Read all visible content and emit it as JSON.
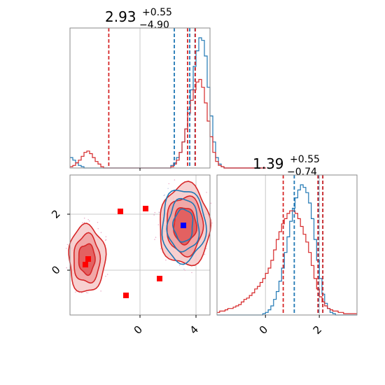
{
  "chart_data": {
    "type": "corner",
    "parameters": [
      {
        "title": {
          "median": "2.93",
          "plus": "+0.55",
          "minus": "−4.90"
        },
        "hist_xlim": [
          -5.0,
          5.0
        ],
        "ticks": [],
        "blue_quantiles": [
          2.45,
          3.55,
          3.93
        ],
        "red_quantiles": [
          -2.23,
          3.4,
          3.95
        ],
        "blue_hist": {
          "x0": -5.0,
          "bin_width": 0.2,
          "values": [
            0.08,
            0.06,
            0.04,
            0.02,
            0.01,
            0,
            0,
            0,
            0,
            0,
            0,
            0,
            0,
            0,
            0,
            0,
            0,
            0,
            0,
            0,
            0,
            0,
            0,
            0,
            0,
            0,
            0,
            0,
            0,
            0,
            0,
            0,
            0,
            0,
            0,
            0,
            0.02,
            0.04,
            0.08,
            0.12,
            0.2,
            0.3,
            0.45,
            0.6,
            0.78,
            0.9,
            1.0,
            0.98,
            0.86,
            0.62,
            0.4,
            0.2,
            0.08,
            0.03,
            0.01,
            0,
            0,
            0,
            0,
            0,
            0,
            0,
            0,
            0,
            0,
            0,
            0,
            0,
            0,
            0
          ]
        },
        "red_hist": {
          "x0": -5.0,
          "bin_width": 0.2,
          "values": [
            0.01,
            0.02,
            0.04,
            0.06,
            0.09,
            0.12,
            0.13,
            0.11,
            0.08,
            0.05,
            0.03,
            0.01,
            0,
            0,
            0,
            0,
            0,
            0,
            0,
            0,
            0,
            0,
            0,
            0,
            0,
            0,
            0,
            0,
            0,
            0,
            0,
            0,
            0,
            0,
            0,
            0,
            0.01,
            0.03,
            0.06,
            0.12,
            0.2,
            0.3,
            0.42,
            0.52,
            0.6,
            0.66,
            0.68,
            0.62,
            0.5,
            0.36,
            0.24,
            0.12,
            0.05,
            0.02,
            0.01,
            0,
            0,
            0,
            0,
            0,
            0,
            0,
            0,
            0,
            0,
            0,
            0,
            0,
            0,
            0
          ]
        }
      },
      {
        "title": {
          "median": "1.39",
          "plus": "+0.55",
          "minus": "−0.74"
        },
        "hist_xlim": [
          -1.8,
          3.4
        ],
        "ticks": [
          0,
          2
        ],
        "blue_quantiles": [
          1.07,
          1.97,
          2.13
        ],
        "red_quantiles": [
          0.66,
          1.95,
          2.13
        ],
        "blue_hist": {
          "x0": -1.8,
          "bin_width": 0.1,
          "values": [
            0,
            0,
            0,
            0,
            0,
            0,
            0,
            0,
            0,
            0,
            0,
            0,
            0,
            0,
            0,
            0,
            0,
            0.01,
            0.02,
            0.04,
            0.07,
            0.12,
            0.18,
            0.26,
            0.36,
            0.48,
            0.6,
            0.72,
            0.82,
            0.9,
            0.96,
            1.0,
            0.98,
            0.94,
            0.86,
            0.74,
            0.58,
            0.42,
            0.28,
            0.16,
            0.09,
            0.05,
            0.02,
            0.01,
            0,
            0,
            0,
            0,
            0,
            0,
            0,
            0
          ]
        },
        "red_hist": {
          "x0": -1.8,
          "bin_width": 0.1,
          "values": [
            0.02,
            0.03,
            0.03,
            0.04,
            0.05,
            0.05,
            0.06,
            0.07,
            0.08,
            0.1,
            0.12,
            0.13,
            0.15,
            0.17,
            0.2,
            0.22,
            0.25,
            0.28,
            0.32,
            0.36,
            0.42,
            0.5,
            0.58,
            0.64,
            0.7,
            0.74,
            0.78,
            0.8,
            0.8,
            0.78,
            0.74,
            0.68,
            0.62,
            0.56,
            0.48,
            0.38,
            0.28,
            0.2,
            0.14,
            0.1,
            0.07,
            0.05,
            0.04,
            0.03,
            0.03,
            0.02,
            0.02,
            0.01,
            0.01,
            0.01,
            0.01,
            0.01
          ]
        }
      }
    ],
    "joint": {
      "xlim": [
        -5.0,
        5.0
      ],
      "ylim": [
        -1.6,
        3.4
      ],
      "xticks": [
        0,
        4
      ],
      "yticks": [
        0,
        2
      ],
      "red_markers": [
        [
          -3.7,
          0.4
        ],
        [
          -3.9,
          0.2
        ],
        [
          -1.4,
          2.1
        ],
        [
          0.4,
          2.2
        ],
        [
          -1.0,
          -0.9
        ],
        [
          1.4,
          -0.3
        ]
      ],
      "blue_markers": [
        [
          3.1,
          1.6
        ]
      ],
      "red_blobs": [
        {
          "cx": -3.8,
          "cy": 0.4,
          "rx": 1.3,
          "ry": 1.2
        },
        {
          "cx": 3.2,
          "cy": 1.6,
          "rx": 1.8,
          "ry": 1.45
        }
      ],
      "blue_blobs": [
        {
          "cx": 3.1,
          "cy": 1.6,
          "rx": 1.55,
          "ry": 1.3
        }
      ]
    },
    "colors": {
      "blue": "#1f77b4",
      "red": "#d62728",
      "red_fill": "#f0a0a0",
      "grid": "#c8c8c8",
      "frame": "#8a8a8a"
    }
  }
}
